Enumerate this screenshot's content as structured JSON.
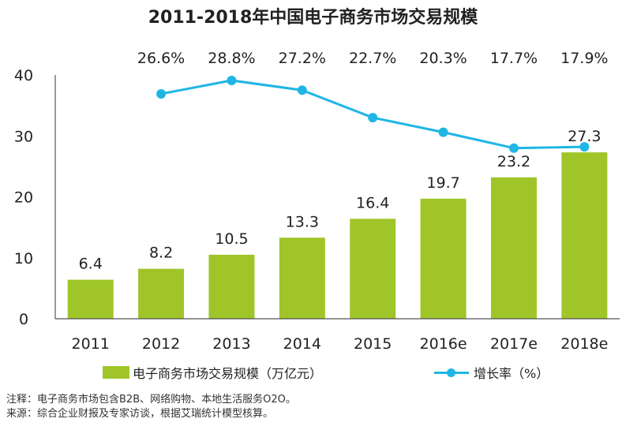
{
  "title": "2011-2018年中国电子商务市场交易规模",
  "colors": {
    "bar": "#9fc529",
    "line": "#1fb6e4",
    "axis": "#555555"
  },
  "legend": {
    "bar_label": "电子商务市场交易规模（万亿元）",
    "line_label": "增长率（%）"
  },
  "notes": {
    "note": "注释：电子商务市场包含B2B、网络购物、本地生活服务O2O。",
    "source": "来源：综合企业财报及专家访谈，根据艾瑞统计模型核算。"
  },
  "chart_data": {
    "type": "bar",
    "title": "2011-2018年中国电子商务市场交易规模",
    "categories": [
      "2011",
      "2012",
      "2013",
      "2014",
      "2015",
      "2016e",
      "2017e",
      "2018e"
    ],
    "ylim": [
      0,
      40
    ],
    "yticks": [
      0,
      10,
      20,
      30,
      40
    ],
    "grid": false,
    "legend_position": "bottom",
    "series": [
      {
        "name": "电子商务市场交易规模（万亿元）",
        "type": "bar",
        "values": [
          6.4,
          8.2,
          10.5,
          13.3,
          16.4,
          19.7,
          23.2,
          27.3
        ],
        "labels": [
          "6.4",
          "8.2",
          "10.5",
          "13.3",
          "16.4",
          "19.7",
          "23.2",
          "27.3"
        ]
      },
      {
        "name": "增长率（%）",
        "type": "line",
        "x": [
          "2012",
          "2013",
          "2014",
          "2015",
          "2016e",
          "2017e",
          "2018e"
        ],
        "values": [
          26.6,
          28.8,
          27.2,
          22.7,
          20.3,
          17.7,
          17.9
        ],
        "labels": [
          "26.6%",
          "28.8%",
          "27.2%",
          "22.7%",
          "20.3%",
          "17.7%",
          "17.9%"
        ]
      }
    ]
  }
}
